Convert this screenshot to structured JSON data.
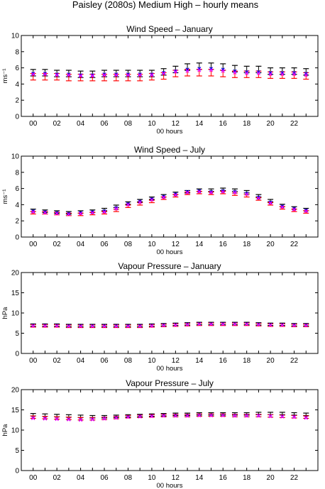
{
  "figure": {
    "title": "Paisley (2080s) Medium High – hourly means",
    "colors": {
      "black": "#000000",
      "red": "#ff0000",
      "blue": "#0000ff",
      "magenta": "#ff00ff"
    }
  },
  "chart_data": [
    {
      "type": "errorbar",
      "title": "Wind Speed – January",
      "xlabel": "00 hours",
      "ylabel": "ms⁻¹",
      "ylim": [
        0,
        10
      ],
      "yticks": [
        0,
        2,
        4,
        6,
        8,
        10
      ],
      "xlim": [
        -1,
        24
      ],
      "xticks": [
        "00",
        "02",
        "04",
        "06",
        "08",
        "10",
        "12",
        "14",
        "16",
        "18",
        "20",
        "22"
      ],
      "hours": [
        0,
        1,
        2,
        3,
        4,
        5,
        6,
        7,
        8,
        9,
        10,
        11,
        12,
        13,
        14,
        15,
        16,
        17,
        18,
        19,
        20,
        21,
        22,
        23
      ],
      "grid": false,
      "series": [
        {
          "color": "black",
          "values": [
            5.4,
            5.4,
            5.3,
            5.3,
            5.2,
            5.2,
            5.3,
            5.3,
            5.3,
            5.3,
            5.3,
            5.5,
            5.8,
            6.1,
            6.2,
            6.2,
            6.1,
            5.9,
            5.8,
            5.8,
            5.6,
            5.6,
            5.6,
            5.5
          ],
          "err": 0.4
        },
        {
          "color": "red",
          "values": [
            4.9,
            4.9,
            4.9,
            4.8,
            4.8,
            4.8,
            4.8,
            4.8,
            4.8,
            4.8,
            4.9,
            5.0,
            5.3,
            5.4,
            5.4,
            5.4,
            5.3,
            5.2,
            5.2,
            5.2,
            5.1,
            5.1,
            5.1,
            5.0
          ],
          "err": 0.4
        },
        {
          "color": "blue",
          "values": [
            5.3,
            5.3,
            5.2,
            5.2,
            5.1,
            5.1,
            5.2,
            5.2,
            5.2,
            5.2,
            5.2,
            5.4,
            5.6,
            5.8,
            5.9,
            5.9,
            5.8,
            5.6,
            5.5,
            5.5,
            5.4,
            5.4,
            5.4,
            5.3
          ]
        },
        {
          "color": "magenta",
          "values": [
            5.2,
            5.2,
            5.1,
            5.1,
            5.0,
            5.0,
            5.1,
            5.1,
            5.1,
            5.1,
            5.1,
            5.3,
            5.5,
            5.6,
            5.7,
            5.7,
            5.6,
            5.4,
            5.3,
            5.3,
            5.2,
            5.2,
            5.2,
            5.1
          ]
        }
      ]
    },
    {
      "type": "errorbar",
      "title": "Wind Speed – July",
      "xlabel": "00 hours",
      "ylabel": "ms⁻¹",
      "ylim": [
        0,
        10
      ],
      "yticks": [
        0,
        2,
        4,
        6,
        8,
        10
      ],
      "xlim": [
        -1,
        24
      ],
      "xticks": [
        "00",
        "02",
        "04",
        "06",
        "08",
        "10",
        "12",
        "14",
        "16",
        "18",
        "20",
        "22"
      ],
      "hours": [
        0,
        1,
        2,
        3,
        4,
        5,
        6,
        7,
        8,
        9,
        10,
        11,
        12,
        13,
        14,
        15,
        16,
        17,
        18,
        19,
        20,
        21,
        22,
        23
      ],
      "grid": false,
      "series": [
        {
          "color": "black",
          "values": [
            3.3,
            3.2,
            3.1,
            3.0,
            3.1,
            3.2,
            3.4,
            3.8,
            4.2,
            4.5,
            4.8,
            5.1,
            5.4,
            5.6,
            5.8,
            5.8,
            5.9,
            5.8,
            5.6,
            5.1,
            4.5,
            3.9,
            3.6,
            3.4
          ],
          "err": 0.15
        },
        {
          "color": "red",
          "values": [
            3.0,
            3.0,
            2.9,
            2.8,
            2.8,
            2.9,
            3.0,
            3.3,
            3.8,
            4.1,
            4.4,
            4.8,
            5.1,
            5.4,
            5.5,
            5.4,
            5.5,
            5.3,
            5.1,
            4.7,
            4.1,
            3.6,
            3.3,
            3.1
          ],
          "err": 0.15
        },
        {
          "color": "blue",
          "values": [
            3.2,
            3.1,
            3.0,
            2.9,
            3.0,
            3.1,
            3.2,
            3.6,
            4.1,
            4.4,
            4.7,
            5.0,
            5.3,
            5.6,
            5.7,
            5.6,
            5.7,
            5.6,
            5.4,
            4.9,
            4.3,
            3.8,
            3.5,
            3.3
          ]
        },
        {
          "color": "magenta",
          "values": [
            3.1,
            3.0,
            2.9,
            2.8,
            2.9,
            3.0,
            3.1,
            3.5,
            4.0,
            4.3,
            4.6,
            4.9,
            5.2,
            5.5,
            5.6,
            5.5,
            5.6,
            5.5,
            5.3,
            4.8,
            4.2,
            3.7,
            3.4,
            3.2
          ]
        }
      ]
    },
    {
      "type": "errorbar",
      "title": "Vapour Pressure – January",
      "xlabel": "00 hours",
      "ylabel": "hPa",
      "ylim": [
        0,
        20
      ],
      "yticks": [
        0,
        5,
        10,
        15,
        20
      ],
      "xlim": [
        -1,
        24
      ],
      "xticks": [
        "00",
        "02",
        "04",
        "06",
        "08",
        "10",
        "12",
        "14",
        "16",
        "18",
        "20",
        "22"
      ],
      "hours": [
        0,
        1,
        2,
        3,
        4,
        5,
        6,
        7,
        8,
        9,
        10,
        11,
        12,
        13,
        14,
        15,
        16,
        17,
        18,
        19,
        20,
        21,
        22,
        23
      ],
      "grid": false,
      "series": [
        {
          "color": "black",
          "values": [
            7.0,
            7.0,
            7.0,
            6.9,
            6.9,
            6.9,
            6.9,
            6.9,
            6.9,
            6.9,
            7.0,
            7.1,
            7.2,
            7.3,
            7.4,
            7.4,
            7.4,
            7.4,
            7.4,
            7.3,
            7.2,
            7.2,
            7.1,
            7.1
          ],
          "err": 0.3
        },
        {
          "color": "red",
          "values": [
            6.8,
            6.8,
            6.8,
            6.7,
            6.7,
            6.7,
            6.7,
            6.7,
            6.7,
            6.7,
            6.8,
            6.9,
            7.0,
            7.1,
            7.2,
            7.2,
            7.2,
            7.2,
            7.2,
            7.1,
            7.0,
            7.0,
            6.9,
            6.9
          ],
          "err": 0.3
        },
        {
          "color": "blue",
          "values": [
            6.9,
            6.9,
            6.9,
            6.8,
            6.8,
            6.8,
            6.8,
            6.8,
            6.8,
            6.8,
            6.9,
            7.0,
            7.1,
            7.2,
            7.3,
            7.3,
            7.3,
            7.3,
            7.3,
            7.2,
            7.1,
            7.1,
            7.0,
            7.0
          ]
        },
        {
          "color": "magenta",
          "values": [
            6.8,
            6.8,
            6.8,
            6.7,
            6.7,
            6.7,
            6.7,
            6.7,
            6.7,
            6.7,
            6.8,
            6.9,
            7.0,
            7.1,
            7.2,
            7.2,
            7.2,
            7.2,
            7.2,
            7.1,
            7.0,
            7.0,
            6.9,
            6.9
          ]
        }
      ]
    },
    {
      "type": "errorbar",
      "title": "Vapour Pressure – July",
      "xlabel": "00 hours",
      "ylabel": "hPa",
      "ylim": [
        0,
        20
      ],
      "yticks": [
        0,
        5,
        10,
        15,
        20
      ],
      "xlim": [
        -1,
        24
      ],
      "xticks": [
        "00",
        "02",
        "04",
        "06",
        "08",
        "10",
        "12",
        "14",
        "16",
        "18",
        "20",
        "22"
      ],
      "hours": [
        0,
        1,
        2,
        3,
        4,
        5,
        6,
        7,
        8,
        9,
        10,
        11,
        12,
        13,
        14,
        15,
        16,
        17,
        18,
        19,
        20,
        21,
        22,
        23
      ],
      "grid": false,
      "series": [
        {
          "color": "black",
          "values": [
            13.8,
            13.7,
            13.6,
            13.5,
            13.4,
            13.3,
            13.3,
            13.4,
            13.5,
            13.6,
            13.7,
            13.8,
            13.9,
            13.9,
            14.0,
            14.0,
            14.0,
            14.0,
            14.0,
            14.1,
            14.1,
            14.1,
            14.0,
            13.9
          ],
          "err": 0.3
        },
        {
          "color": "red",
          "values": [
            13.2,
            13.1,
            13.0,
            12.9,
            12.8,
            12.8,
            12.9,
            13.1,
            13.3,
            13.4,
            13.5,
            13.6,
            13.6,
            13.6,
            13.7,
            13.7,
            13.7,
            13.6,
            13.6,
            13.6,
            13.5,
            13.4,
            13.3,
            13.2
          ],
          "err": 0.3
        },
        {
          "color": "blue",
          "values": [
            13.0,
            12.9,
            12.8,
            12.7,
            12.6,
            12.7,
            12.9,
            13.1,
            13.3,
            13.4,
            13.5,
            13.6,
            13.6,
            13.6,
            13.7,
            13.7,
            13.7,
            13.6,
            13.6,
            13.6,
            13.5,
            13.4,
            13.3,
            13.1
          ]
        },
        {
          "color": "magenta",
          "values": [
            12.9,
            12.8,
            12.7,
            12.6,
            12.5,
            12.6,
            12.8,
            13.0,
            13.2,
            13.3,
            13.4,
            13.5,
            13.5,
            13.5,
            13.6,
            13.6,
            13.6,
            13.5,
            13.5,
            13.5,
            13.4,
            13.3,
            13.2,
            13.0
          ]
        }
      ]
    }
  ]
}
